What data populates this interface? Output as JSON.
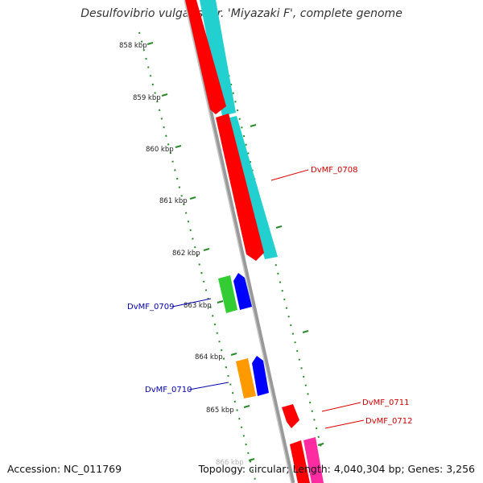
{
  "title": "Desulfovibrio vulgaris str. 'Miyazaki F', complete genome",
  "footer": {
    "accession": "Accession: NC_011769",
    "stats": "Topology: circular; Length: 4,040,304 bp; Genes: 3,256"
  },
  "ticks": [
    "858 kbp",
    "859 kbp",
    "860 kbp",
    "861 kbp",
    "862 kbp",
    "863 kbp",
    "864 kbp",
    "865 kbp",
    "866 kbp"
  ],
  "genes": [
    {
      "id": "DvMF_0708",
      "color": "#cc0000",
      "strand": "forward"
    },
    {
      "id": "DvMF_0709",
      "color": "#0000aa",
      "strand": "reverse"
    },
    {
      "id": "DvMF_0710",
      "color": "#0000aa",
      "strand": "reverse"
    },
    {
      "id": "DvMF_0711",
      "color": "#cc0000",
      "strand": "forward"
    },
    {
      "id": "DvMF_0712",
      "color": "#cc0000",
      "strand": "forward"
    }
  ],
  "colors": {
    "backbone": "#888888",
    "tick": "#2a8a2a",
    "red": "#ff0000",
    "cyan": "#22d0d0",
    "green": "#33cc33",
    "blue": "#0000ff",
    "orange": "#ff9900",
    "pink": "#ff2ba0"
  }
}
